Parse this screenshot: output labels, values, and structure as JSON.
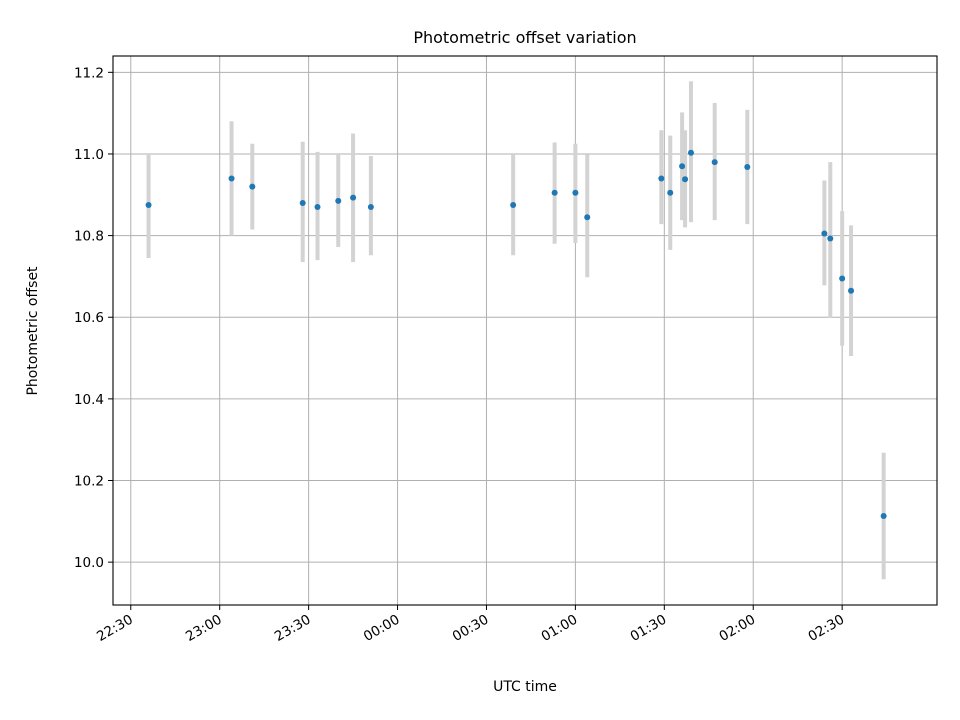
{
  "chart_data": {
    "type": "scatter",
    "title": "Photometric offset variation",
    "xlabel": "UTC time",
    "ylabel": "Photometric offset",
    "x_axis": {
      "kind": "time",
      "range": [
        "22:24",
        "03:02"
      ],
      "ticks": [
        "22:30",
        "23:00",
        "23:30",
        "00:00",
        "00:30",
        "01:00",
        "01:30",
        "02:00",
        "02:30"
      ]
    },
    "y_axis": {
      "range": [
        9.895,
        11.24
      ],
      "ticks": [
        "10.0",
        "10.2",
        "10.4",
        "10.6",
        "10.8",
        "11.0",
        "11.2"
      ],
      "tick_values": [
        10.0,
        10.2,
        10.4,
        10.6,
        10.8,
        11.0,
        11.2
      ]
    },
    "grid": true,
    "colors": {
      "point": "#1f77b4",
      "errorbar": "#d3d3d3",
      "grid": "#b0b0b0"
    },
    "points": [
      {
        "time": "22:36",
        "y": 10.875,
        "low": 10.745,
        "high": 11.0
      },
      {
        "time": "23:04",
        "y": 10.94,
        "low": 10.8,
        "high": 11.08
      },
      {
        "time": "23:11",
        "y": 10.92,
        "low": 10.815,
        "high": 11.025
      },
      {
        "time": "23:28",
        "y": 10.88,
        "low": 10.735,
        "high": 11.03
      },
      {
        "time": "23:33",
        "y": 10.87,
        "low": 10.74,
        "high": 11.005
      },
      {
        "time": "23:40",
        "y": 10.885,
        "low": 10.772,
        "high": 11.0
      },
      {
        "time": "23:45",
        "y": 10.893,
        "low": 10.735,
        "high": 11.05
      },
      {
        "time": "23:51",
        "y": 10.87,
        "low": 10.752,
        "high": 10.995
      },
      {
        "time": "00:39",
        "y": 10.875,
        "low": 10.752,
        "high": 11.0
      },
      {
        "time": "00:53",
        "y": 10.905,
        "low": 10.78,
        "high": 11.028
      },
      {
        "time": "01:00",
        "y": 10.905,
        "low": 10.782,
        "high": 11.025
      },
      {
        "time": "01:04",
        "y": 10.845,
        "low": 10.698,
        "high": 10.998
      },
      {
        "time": "01:29",
        "y": 10.94,
        "low": 10.828,
        "high": 11.058
      },
      {
        "time": "01:32",
        "y": 10.905,
        "low": 10.765,
        "high": 11.045
      },
      {
        "time": "01:36",
        "y": 10.97,
        "low": 10.838,
        "high": 11.102
      },
      {
        "time": "01:37",
        "y": 10.938,
        "low": 10.82,
        "high": 11.058
      },
      {
        "time": "01:39",
        "y": 11.003,
        "low": 10.833,
        "high": 11.178
      },
      {
        "time": "01:47",
        "y": 10.98,
        "low": 10.838,
        "high": 11.125
      },
      {
        "time": "01:58",
        "y": 10.968,
        "low": 10.828,
        "high": 11.108
      },
      {
        "time": "02:24",
        "y": 10.805,
        "low": 10.678,
        "high": 10.935
      },
      {
        "time": "02:26",
        "y": 10.793,
        "low": 10.598,
        "high": 10.98
      },
      {
        "time": "02:30",
        "y": 10.695,
        "low": 10.53,
        "high": 10.86
      },
      {
        "time": "02:33",
        "y": 10.665,
        "low": 10.505,
        "high": 10.825
      },
      {
        "time": "02:44",
        "y": 10.113,
        "low": 9.958,
        "high": 10.268
      }
    ]
  }
}
